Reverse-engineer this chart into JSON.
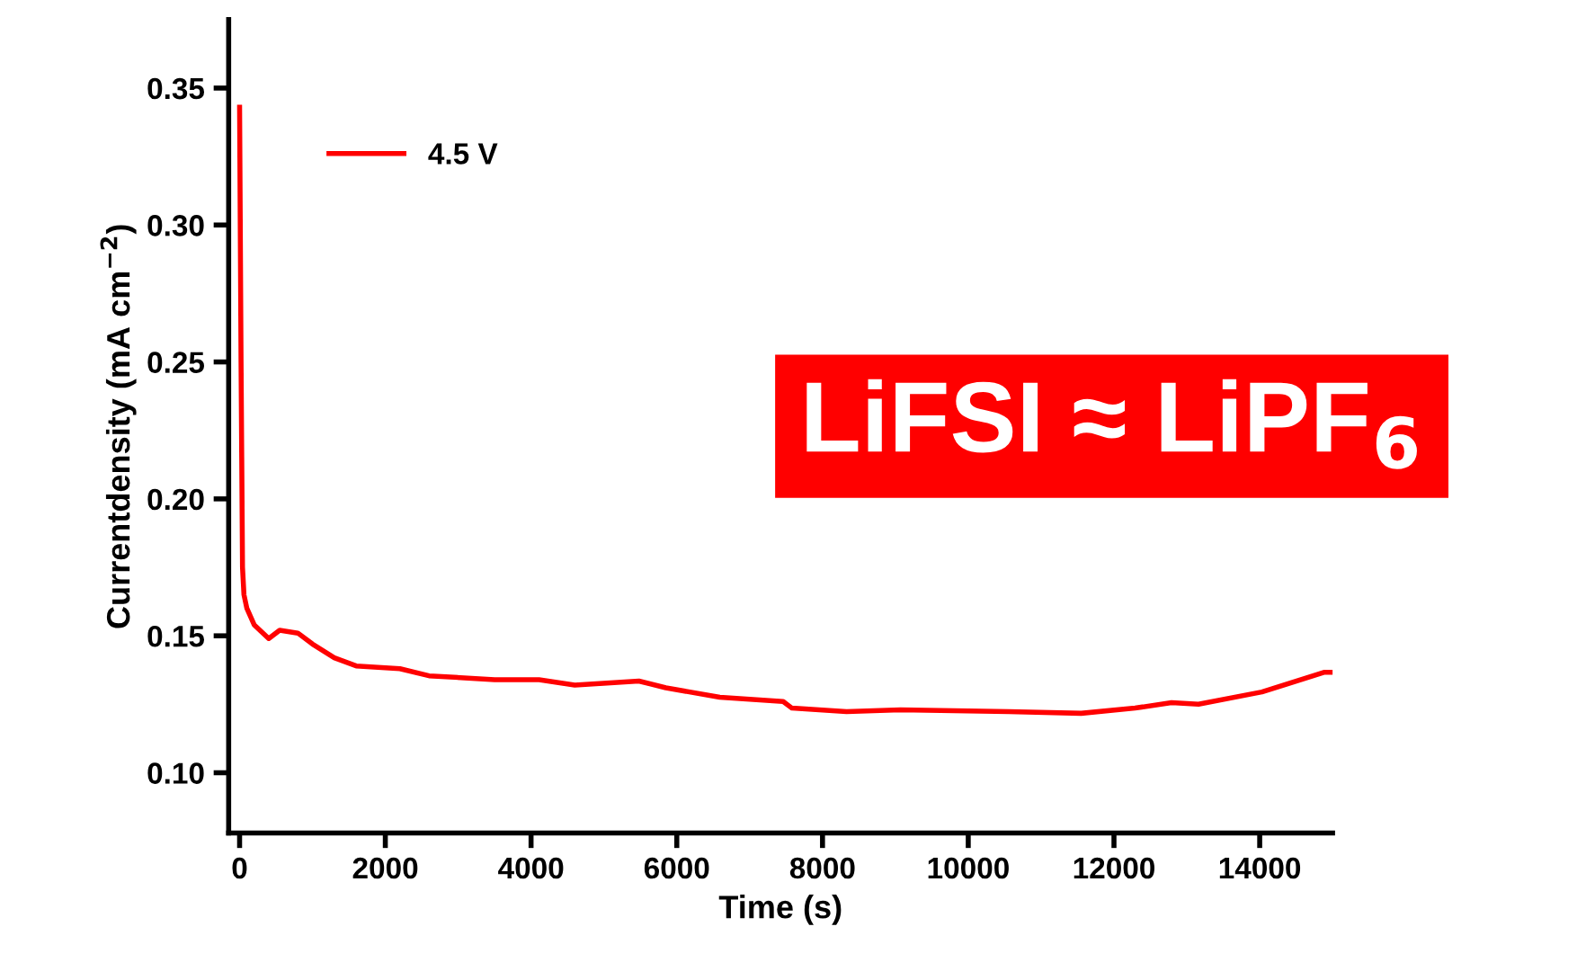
{
  "chart_data": {
    "type": "line",
    "xlabel": "Time (s)",
    "ylabel": "Currentdensity (mA cm$^{−2}$)",
    "xlim": [
      -150,
      15000
    ],
    "ylim": [
      0.078,
      0.375
    ],
    "xticks": [
      0,
      2000,
      4000,
      6000,
      8000,
      10000,
      12000,
      14000
    ],
    "yticks": [
      {
        "value": 0.1,
        "label": "0.10"
      },
      {
        "value": 0.15,
        "label": "0.15"
      },
      {
        "value": 0.2,
        "label": "0.20"
      },
      {
        "value": 0.25,
        "label": "0.25"
      },
      {
        "value": 0.3,
        "label": "0.30"
      },
      {
        "value": 0.35,
        "label": "0.35"
      }
    ],
    "grid": false,
    "legend": "top left",
    "marker": "none",
    "line_style": "solid",
    "annotations": [
      "LiFSI ≈ LiPF$_{6}$"
    ],
    "series": [
      {
        "name": "4.5 V",
        "color": "#ff0000",
        "x": [
          0,
          20,
          40,
          60,
          100,
          200,
          400,
          550,
          800,
          1000,
          1300,
          1600,
          2200,
          2600,
          3500,
          4110,
          4600,
          5480,
          5850,
          6590,
          7460,
          7580,
          8330,
          9070,
          10560,
          11550,
          12290,
          12790,
          13160,
          14030,
          14890,
          15000
        ],
        "values": [
          0.343,
          0.25,
          0.175,
          0.165,
          0.16,
          0.154,
          0.149,
          0.152,
          0.151,
          0.147,
          0.142,
          0.139,
          0.138,
          0.1354,
          0.134,
          0.134,
          0.132,
          0.1335,
          0.131,
          0.1276,
          0.126,
          0.1236,
          0.1223,
          0.123,
          0.1223,
          0.1217,
          0.1236,
          0.1256,
          0.125,
          0.1295,
          0.1367,
          0.1367
        ]
      }
    ]
  }
}
